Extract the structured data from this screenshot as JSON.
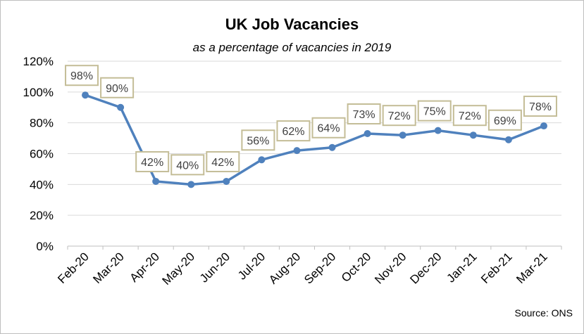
{
  "chart_data": {
    "type": "line",
    "title": "UK Job Vacancies",
    "subtitle": "as a percentage of vacancies in 2019",
    "source": "Source: ONS",
    "categories": [
      "Feb-20",
      "Mar-20",
      "Apr-20",
      "May-20",
      "Jun-20",
      "Jul-20",
      "Aug-20",
      "Sep-20",
      "Oct-20",
      "Nov-20",
      "Dec-20",
      "Jan-21",
      "Feb-21",
      "Mar-21"
    ],
    "series": [
      {
        "values": [
          98,
          90,
          42,
          40,
          42,
          56,
          62,
          64,
          73,
          72,
          75,
          72,
          69,
          78
        ],
        "data_labels": [
          "98%",
          "90%",
          "42%",
          "40%",
          "42%",
          "56%",
          "62%",
          "64%",
          "73%",
          "72%",
          "75%",
          "72%",
          "69%",
          "78%"
        ]
      }
    ],
    "yticks": [
      "0%",
      "20%",
      "40%",
      "60%",
      "80%",
      "100%",
      "120%"
    ],
    "ylim": [
      0,
      120
    ],
    "grid": true,
    "legend": "none",
    "colors": {
      "line": "#4f81bd",
      "grid": "#d9d9d9",
      "label_border": "#c4bd97"
    }
  }
}
